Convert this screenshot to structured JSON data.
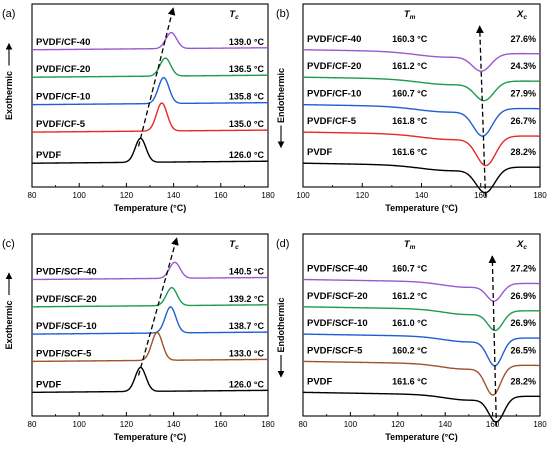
{
  "figure": {
    "background": "#ffffff"
  },
  "chart_data": [
    {
      "panel": "(a)",
      "type": "line",
      "mode": "cryst",
      "xlabel": "Temperature (°C)",
      "ylabel": "Exothermic",
      "ylabel_arrow": "up",
      "xlim": [
        80,
        180
      ],
      "xticks": [
        "80",
        "100",
        "120",
        "140",
        "160",
        "180"
      ],
      "header": {
        "main": "T",
        "sub": "c"
      },
      "series": [
        {
          "name": "PVDF/CF-40",
          "peak": 139.0,
          "value_label": "139.0 °C",
          "color": "#9b59d0"
        },
        {
          "name": "PVDF/CF-20",
          "peak": 136.5,
          "value_label": "136.5 °C",
          "color": "#1e9b4e"
        },
        {
          "name": "PVDF/CF-10",
          "peak": 135.8,
          "value_label": "135.8 °C",
          "color": "#1f5fd6"
        },
        {
          "name": "PVDF/CF-5",
          "peak": 135.0,
          "value_label": "135.0 °C",
          "color": "#e8282a"
        },
        {
          "name": "PVDF",
          "peak": 126.0,
          "value_label": "126.0 °C",
          "color": "#000000"
        }
      ]
    },
    {
      "panel": "(b)",
      "type": "line",
      "mode": "melt",
      "xlabel": "Temperature (°C)",
      "ylabel": "Endothermic",
      "ylabel_arrow": "down",
      "xlim": [
        100,
        180
      ],
      "xticks": [
        "100",
        "120",
        "140",
        "160",
        "180"
      ],
      "header": {
        "main": "T",
        "sub": "m"
      },
      "header2": {
        "main": "X",
        "sub": "c"
      },
      "series": [
        {
          "name": "PVDF/CF-40",
          "peak": 160.3,
          "value_label": "160.3 °C",
          "crystallinity": "27.6%",
          "color": "#9b59d0"
        },
        {
          "name": "PVDF/CF-20",
          "peak": 161.2,
          "value_label": "161.2 °C",
          "crystallinity": "24.3%",
          "color": "#1e9b4e"
        },
        {
          "name": "PVDF/CF-10",
          "peak": 160.7,
          "value_label": "160.7 °C",
          "crystallinity": "27.9%",
          "color": "#1f5fd6"
        },
        {
          "name": "PVDF/CF-5",
          "peak": 161.8,
          "value_label": "161.8 °C",
          "crystallinity": "26.7%",
          "color": "#e8282a"
        },
        {
          "name": "PVDF",
          "peak": 161.6,
          "value_label": "161.6 °C",
          "crystallinity": "28.2%",
          "color": "#000000"
        }
      ]
    },
    {
      "panel": "(c)",
      "type": "line",
      "mode": "cryst",
      "xlabel": "Temperature (°C)",
      "ylabel": "Exothermic",
      "ylabel_arrow": "up",
      "xlim": [
        80,
        180
      ],
      "xticks": [
        "80",
        "100",
        "120",
        "140",
        "160",
        "180"
      ],
      "header": {
        "main": "T",
        "sub": "c"
      },
      "series": [
        {
          "name": "PVDF/SCF-40",
          "peak": 140.5,
          "value_label": "140.5 °C",
          "color": "#9b59d0"
        },
        {
          "name": "PVDF/SCF-20",
          "peak": 139.2,
          "value_label": "139.2 °C",
          "color": "#1e9b4e"
        },
        {
          "name": "PVDF/SCF-10",
          "peak": 138.7,
          "value_label": "138.7 °C",
          "color": "#1f5fd6"
        },
        {
          "name": "PVDF/SCF-5",
          "peak": 133.0,
          "value_label": "133.0 °C",
          "color": "#a0522d"
        },
        {
          "name": "PVDF",
          "peak": 126.0,
          "value_label": "126.0 °C",
          "color": "#000000"
        }
      ]
    },
    {
      "panel": "(d)",
      "type": "line",
      "mode": "melt",
      "xlabel": "Temperature (°C)",
      "ylabel": "Endothermic",
      "ylabel_arrow": "down",
      "xlim": [
        80,
        180
      ],
      "xticks": [
        "80",
        "100",
        "120",
        "140",
        "160",
        "180"
      ],
      "header": {
        "main": "T",
        "sub": "m"
      },
      "header2": {
        "main": "X",
        "sub": "c"
      },
      "series": [
        {
          "name": "PVDF/SCF-40",
          "peak": 160.7,
          "value_label": "160.7 °C",
          "crystallinity": "27.2%",
          "color": "#9b59d0"
        },
        {
          "name": "PVDF/SCF-20",
          "peak": 161.2,
          "value_label": "161.2 °C",
          "crystallinity": "26.9%",
          "color": "#1e9b4e"
        },
        {
          "name": "PVDF/SCF-10",
          "peak": 161.0,
          "value_label": "161.0 °C",
          "crystallinity": "26.9%",
          "color": "#1f5fd6"
        },
        {
          "name": "PVDF/SCF-5",
          "peak": 160.2,
          "value_label": "160.2 °C",
          "crystallinity": "26.5%",
          "color": "#a0522d"
        },
        {
          "name": "PVDF",
          "peak": 161.6,
          "value_label": "161.6 °C",
          "crystallinity": "28.2%",
          "color": "#000000"
        }
      ]
    }
  ]
}
